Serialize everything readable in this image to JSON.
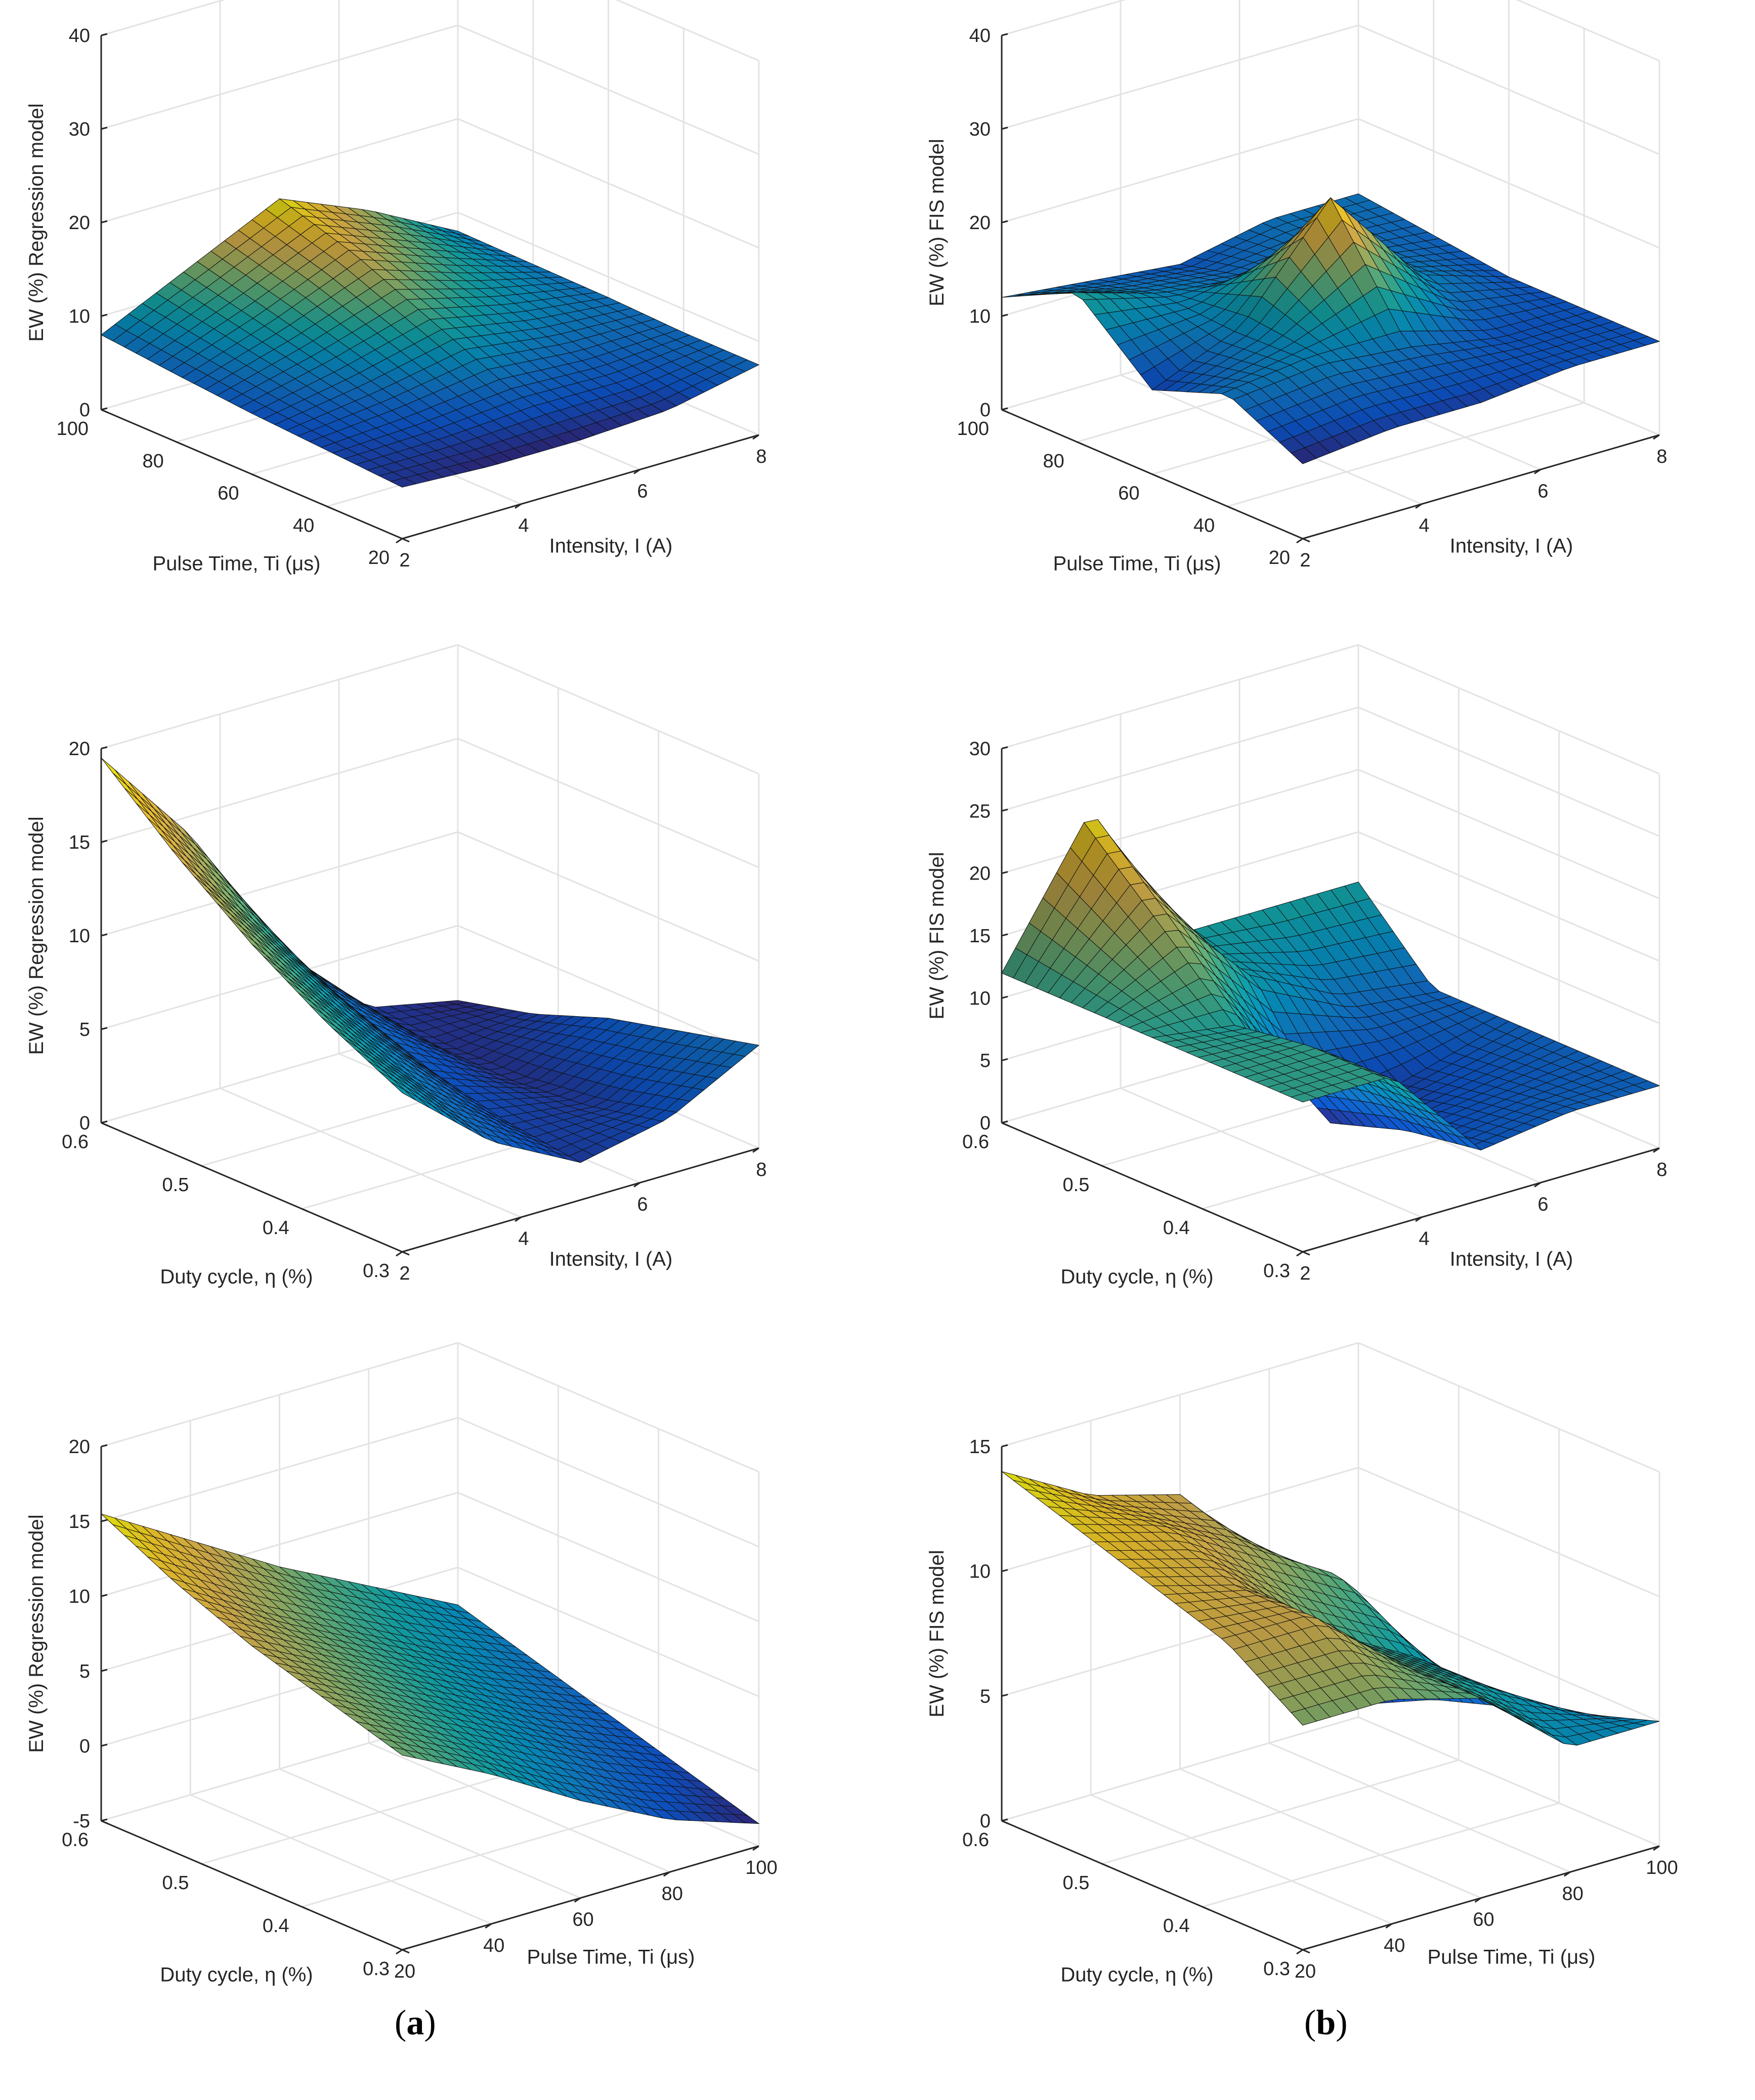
{
  "panel_labels": {
    "a": "a",
    "b": "b"
  },
  "chart_data": [
    {
      "type": "surface3d",
      "panel": "a",
      "row": 1,
      "zlabel": "EW (%) Regression model",
      "xlabel": "Intensity, I (A)",
      "ylabel": "Pulse Time, Ti (μs)",
      "xlim": [
        2,
        8
      ],
      "xticks": [
        2,
        4,
        6,
        8
      ],
      "ylim": [
        20,
        100
      ],
      "yticks": [
        20,
        40,
        60,
        80,
        100
      ],
      "zlim": [
        0,
        40
      ],
      "zticks": [
        0,
        10,
        20,
        30,
        40
      ],
      "corner_values": {
        "xmin_ymin": 5.5,
        "xmax_ymin": 7.5,
        "xmax_ymax": 8.0,
        "xmin_ymax": 8.0
      },
      "peak": {
        "x": 5,
        "y": 100,
        "z": 17
      },
      "grid_x": [
        2,
        3.5,
        5,
        6.5,
        8
      ],
      "grid_y": [
        20,
        40,
        60,
        80,
        100
      ],
      "z": [
        [
          5.5,
          5.0,
          5.0,
          5.5,
          7.5
        ],
        [
          6.0,
          6.5,
          7.5,
          7.0,
          7.5
        ],
        [
          6.5,
          8.5,
          11.0,
          9.0,
          7.8
        ],
        [
          7.2,
          10.5,
          14.5,
          11.0,
          7.9
        ],
        [
          8.0,
          12.5,
          17.0,
          13.0,
          8.0
        ]
      ]
    },
    {
      "type": "surface3d",
      "panel": "b",
      "row": 1,
      "zlabel": "EW (%) FIS model",
      "xlabel": "Intensity, I (A)",
      "ylabel": "Pulse Time, Ti (μs)",
      "xlim": [
        2,
        8
      ],
      "xticks": [
        2,
        4,
        6,
        8
      ],
      "ylim": [
        20,
        100
      ],
      "yticks": [
        20,
        40,
        60,
        80,
        100
      ],
      "zlim": [
        0,
        40
      ],
      "zticks": [
        0,
        10,
        20,
        30,
        40
      ],
      "peak": {
        "x": 5,
        "y": 60,
        "z": 24
      },
      "grid_x": [
        2,
        3.5,
        5,
        6.5,
        8
      ],
      "grid_y": [
        20,
        40,
        60,
        80,
        100
      ],
      "z": [
        [
          8,
          9,
          9,
          10,
          10
        ],
        [
          12,
          13,
          12,
          10,
          10
        ],
        [
          9,
          13,
          24,
          13,
          10
        ],
        [
          16,
          13,
          12,
          12,
          11
        ],
        [
          12,
          11,
          10,
          12,
          12
        ]
      ]
    },
    {
      "type": "surface3d",
      "panel": "a",
      "row": 2,
      "zlabel": "EW (%) Regression model",
      "xlabel": "Intensity, I (A)",
      "ylabel": "Duty cycle, η (%)",
      "xlim": [
        2,
        8
      ],
      "xticks": [
        2,
        4,
        6,
        8
      ],
      "ylim": [
        0.3,
        0.6
      ],
      "yticks": [
        0.3,
        0.4,
        0.5,
        0.6
      ],
      "zlim": [
        0,
        20
      ],
      "zticks": [
        0,
        5,
        10,
        15,
        20
      ],
      "corner_values": {
        "xmin_ymax": 19.5,
        "xmax_ymax": 1.0,
        "xmax_ymin": 5.5,
        "xmin_ymin": 8.5
      },
      "grid_x": [
        2,
        3.5,
        5,
        6.5,
        8
      ],
      "grid_y": [
        0.3,
        0.375,
        0.45,
        0.525,
        0.6
      ],
      "z": [
        [
          8.5,
          4.5,
          2.0,
          3.0,
          5.5
        ],
        [
          10.5,
          6.0,
          2.5,
          2.0,
          4.5
        ],
        [
          13.0,
          8.0,
          3.5,
          1.5,
          3.5
        ],
        [
          16.0,
          10.5,
          5.0,
          1.5,
          2.0
        ],
        [
          19.5,
          14.0,
          6.5,
          2.0,
          1.0
        ]
      ]
    },
    {
      "type": "surface3d",
      "panel": "b",
      "row": 2,
      "zlabel": "EW (%) FIS model",
      "xlabel": "Intensity, I (A)",
      "ylabel": "Duty cycle, η (%)",
      "xlim": [
        2,
        8
      ],
      "xticks": [
        2,
        4,
        6,
        8
      ],
      "ylim": [
        0.3,
        0.6
      ],
      "yticks": [
        0.3,
        0.4,
        0.5,
        0.6
      ],
      "zlim": [
        0,
        30
      ],
      "zticks": [
        0,
        5,
        10,
        15,
        20,
        25,
        30
      ],
      "peak": {
        "x": 3.5,
        "y": 0.6,
        "z": 23
      },
      "grid_x": [
        2,
        3.5,
        5,
        6.5,
        8
      ],
      "grid_y": [
        0.3,
        0.375,
        0.45,
        0.525,
        0.6
      ],
      "z": [
        [
          12,
          12,
          4,
          5,
          5
        ],
        [
          12,
          12,
          3,
          4,
          5
        ],
        [
          12,
          11,
          1,
          3,
          5
        ],
        [
          12,
          17,
          10,
          6,
          5
        ],
        [
          12,
          23,
          11,
          11,
          11
        ]
      ]
    },
    {
      "type": "surface3d",
      "panel": "a",
      "row": 3,
      "zlabel": "EW (%) Regression model",
      "xlabel": "Pulse Time, Ti (μs)",
      "ylabel": "Duty cycle, η (%)",
      "xlim": [
        20,
        100
      ],
      "xticks": [
        20,
        40,
        60,
        80,
        100
      ],
      "ylim": [
        0.3,
        0.6
      ],
      "yticks": [
        0.3,
        0.4,
        0.5,
        0.6
      ],
      "zlim": [
        -5,
        20
      ],
      "zticks": [
        -5,
        0,
        5,
        10,
        15,
        20
      ],
      "corner_values": {
        "xmin_ymax": 15.5,
        "xmax_ymax": 2.5,
        "xmax_ymin": -3.5,
        "xmin_ymin": 8.0
      },
      "grid_x": [
        20,
        40,
        60,
        80,
        100
      ],
      "grid_y": [
        0.3,
        0.375,
        0.45,
        0.525,
        0.6
      ],
      "z": [
        [
          8.0,
          5.0,
          1.5,
          -1.5,
          -3.5
        ],
        [
          9.5,
          6.5,
          3.5,
          0.5,
          -2.0
        ],
        [
          11.0,
          8.0,
          5.0,
          2.0,
          -0.5
        ],
        [
          13.0,
          9.5,
          6.5,
          3.5,
          1.0
        ],
        [
          15.5,
          12.0,
          8.5,
          5.5,
          2.5
        ]
      ]
    },
    {
      "type": "surface3d",
      "panel": "b",
      "row": 3,
      "zlabel": "EW (%) FIS model",
      "xlabel": "Pulse Time, Ti (μs)",
      "ylabel": "Duty cycle, η (%)",
      "xlim": [
        20,
        100
      ],
      "xticks": [
        20,
        40,
        60,
        80,
        100
      ],
      "ylim": [
        0.3,
        0.6
      ],
      "yticks": [
        0.3,
        0.4,
        0.5,
        0.6
      ],
      "zlim": [
        0,
        15
      ],
      "zticks": [
        0,
        5,
        10,
        15
      ],
      "grid_x": [
        20,
        40,
        60,
        80,
        100
      ],
      "grid_y": [
        0.3,
        0.375,
        0.45,
        0.525,
        0.6
      ],
      "z": [
        [
          9,
          9,
          8,
          5,
          5
        ],
        [
          11,
          11,
          8,
          6,
          4
        ],
        [
          12,
          11,
          8,
          6,
          3
        ],
        [
          13,
          12,
          10,
          8,
          2
        ],
        [
          14,
          12,
          11,
          7,
          0.5
        ]
      ]
    }
  ]
}
